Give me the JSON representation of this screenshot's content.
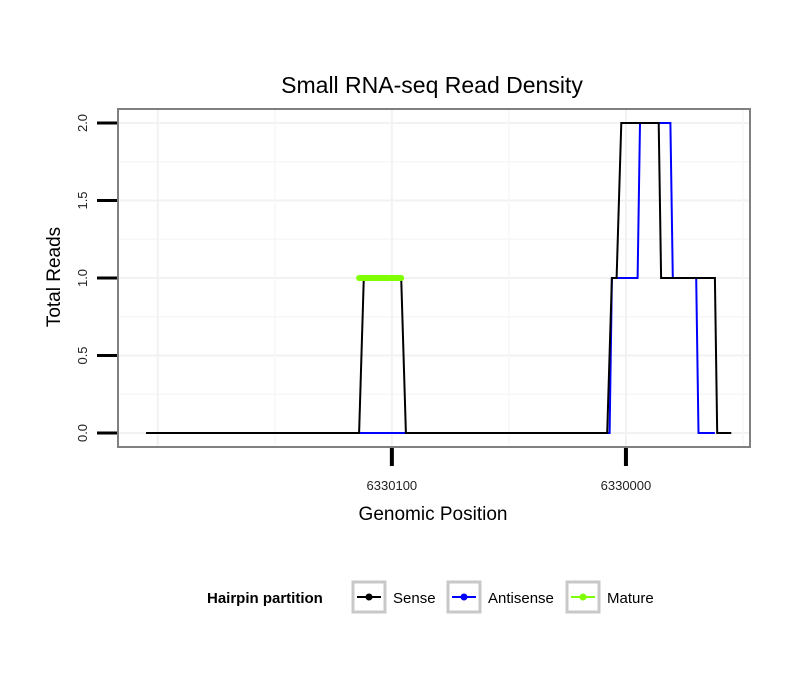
{
  "chart_data": {
    "type": "line",
    "title": "Small RNA-seq Read Density",
    "xlabel": "Genomic Position",
    "ylabel": "Total Reads",
    "xlim": [
      6330217,
      6329947
    ],
    "ylim": [
      -0.09,
      2.09
    ],
    "x_ticks": [
      6330100,
      6330000
    ],
    "x_tick_labels": [
      "6330100",
      "6330000"
    ],
    "y_ticks": [
      0.0,
      0.5,
      1.0,
      1.5,
      2.0
    ],
    "y_tick_labels": [
      "0.0",
      "0.5",
      "1.0",
      "1.5",
      "2.0"
    ],
    "grid": true,
    "legend_position": "bottom",
    "legend_title": "Hairpin partition",
    "series": [
      {
        "name": "Sense",
        "color": "#000000",
        "x": [
          6330205,
          6330114,
          6330112,
          6330096,
          6330094,
          6330008,
          6330006,
          6330004,
          6330002,
          6329986,
          6329985,
          6329974,
          6329973,
          6329962,
          6329961,
          6329955
        ],
        "values": [
          0,
          0,
          1,
          1,
          0,
          0,
          1,
          1,
          2,
          2,
          1,
          1,
          1,
          1,
          0,
          0
        ]
      },
      {
        "name": "Antisense",
        "color": "#0000ff",
        "x": [
          6330205,
          6330007,
          6330006,
          6329995,
          6329994,
          6329981,
          6329980,
          6329970,
          6329969,
          6329962
        ],
        "values": [
          0,
          0,
          1,
          1,
          2,
          2,
          1,
          1,
          0,
          0
        ]
      },
      {
        "name": "Mature",
        "color": "#7fff00",
        "x": [
          6330114,
          6330096
        ],
        "values": [
          1,
          1
        ]
      }
    ]
  }
}
